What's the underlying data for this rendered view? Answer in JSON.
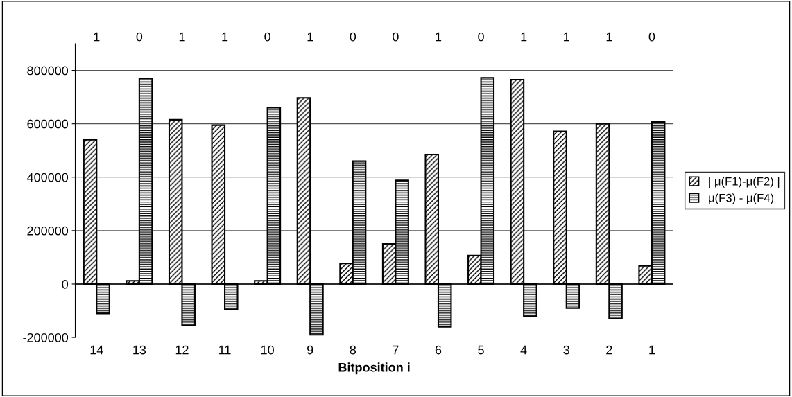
{
  "chart_data": {
    "type": "bar",
    "xlabel": "Bitposition i",
    "categories": [
      "14",
      "13",
      "12",
      "11",
      "10",
      "9",
      "8",
      "7",
      "6",
      "5",
      "4",
      "3",
      "2",
      "1"
    ],
    "series": [
      {
        "name": "| μ(F1)-μ(F2) |",
        "color": "#000000",
        "values": [
          540000,
          12000,
          615000,
          595000,
          12000,
          697000,
          77000,
          150000,
          485000,
          107000,
          765000,
          572000,
          600000,
          68000
        ]
      },
      {
        "name": "μ(F3) - μ(F4)",
        "color": "#000000",
        "values": [
          -110000,
          770000,
          -155000,
          -95000,
          660000,
          -190000,
          460000,
          388000,
          -160000,
          772000,
          -120000,
          -90000,
          -130000,
          607000
        ]
      }
    ],
    "ylim": [
      -200000,
      900000
    ],
    "yticks": [
      -200000,
      0,
      200000,
      400000,
      600000,
      800000
    ],
    "grid": "y",
    "legend": "right",
    "annotations": [
      "1",
      "0",
      "1",
      "1",
      "0",
      "1",
      "0",
      "0",
      "1",
      "0",
      "1",
      "1",
      "1",
      "0"
    ]
  }
}
